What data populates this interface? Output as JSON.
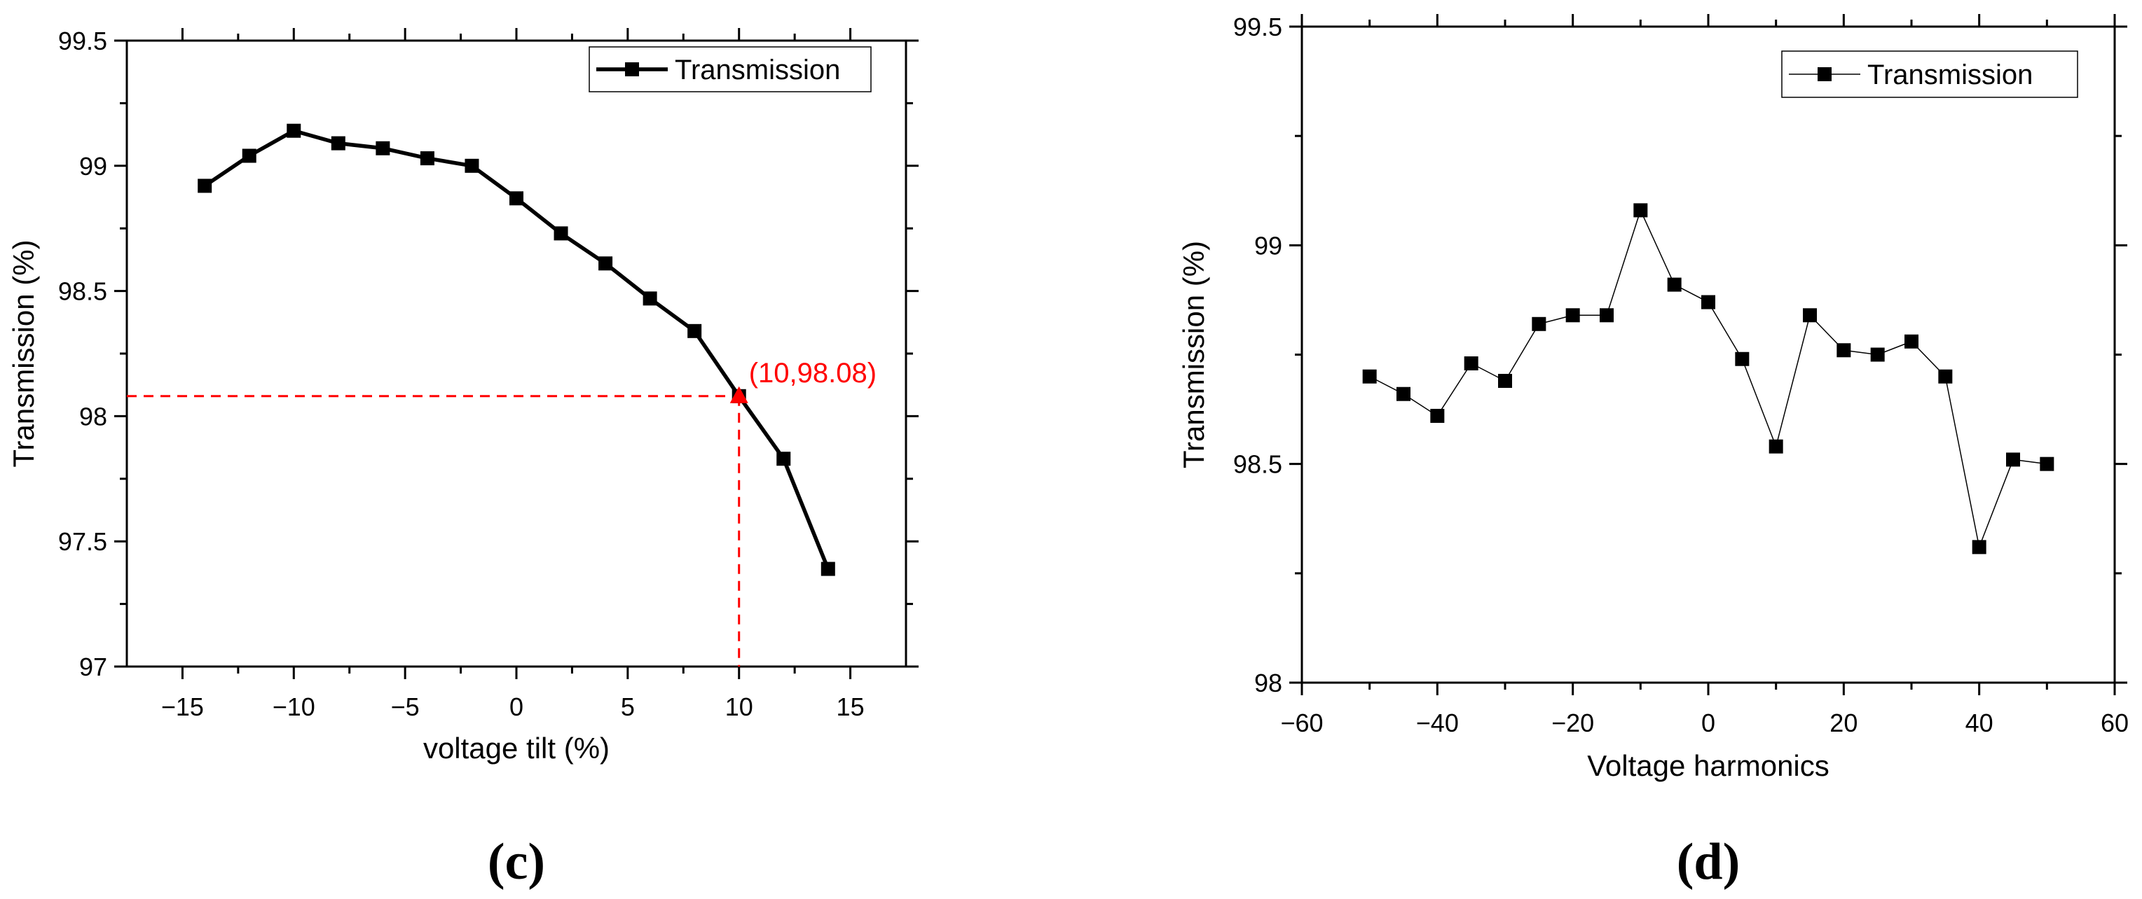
{
  "chart_data": [
    {
      "type": "line",
      "panel_label": "(c)",
      "xlabel": "voltage tilt (%)",
      "ylabel": "Transmission (%)",
      "xlim": [
        -17.5,
        17.5
      ],
      "ylim": [
        97,
        99.5
      ],
      "xticks": [
        -15,
        -10,
        -5,
        0,
        5,
        10,
        15
      ],
      "xtick_labels": [
        "−15",
        "−10",
        "−5",
        "0",
        "5",
        "10",
        "15"
      ],
      "yticks": [
        97,
        97.5,
        98,
        98.5,
        99,
        99.5
      ],
      "ytick_labels": [
        "97",
        "97.5",
        "98",
        "98.5",
        "99",
        "99.5"
      ],
      "legend": "top-right",
      "series": [
        {
          "name": "Transmission",
          "color": "#000000",
          "marker": "square",
          "x": [
            -14,
            -12,
            -10,
            -8,
            -6,
            -4,
            -2,
            0,
            2,
            4,
            6,
            8,
            10,
            12,
            14
          ],
          "y": [
            98.92,
            99.04,
            99.14,
            99.09,
            99.07,
            99.03,
            99.0,
            98.87,
            98.73,
            98.61,
            98.47,
            98.34,
            98.08,
            97.83,
            97.39
          ]
        }
      ],
      "annotation": {
        "text": "(10,98.08)",
        "x": 10,
        "y": 98.08,
        "color": "#ff0000"
      }
    },
    {
      "type": "line",
      "panel_label": "(d)",
      "xlabel": "Voltage harmonics",
      "ylabel": "Transmission (%)",
      "xlim": [
        -60,
        60
      ],
      "ylim": [
        98,
        99.5
      ],
      "xticks": [
        -60,
        -40,
        -20,
        0,
        20,
        40,
        60
      ],
      "xtick_labels": [
        "−60",
        "−40",
        "−20",
        "0",
        "20",
        "40",
        "60"
      ],
      "yticks": [
        98,
        98.5,
        99,
        99.5
      ],
      "ytick_labels": [
        "98",
        "98.5",
        "99",
        "99.5"
      ],
      "legend": "top-right",
      "series": [
        {
          "name": "Transmission",
          "color": "#000000",
          "marker": "square",
          "x": [
            -50,
            -45,
            -40,
            -35,
            -30,
            -25,
            -20,
            -15,
            -10,
            -5,
            0,
            5,
            10,
            15,
            20,
            25,
            30,
            35,
            40,
            45,
            50
          ],
          "y": [
            98.7,
            98.66,
            98.61,
            98.73,
            98.69,
            98.82,
            98.84,
            98.84,
            99.08,
            98.91,
            98.87,
            98.74,
            98.54,
            98.84,
            98.76,
            98.75,
            98.78,
            98.7,
            98.31,
            98.51,
            98.5
          ]
        }
      ]
    }
  ]
}
